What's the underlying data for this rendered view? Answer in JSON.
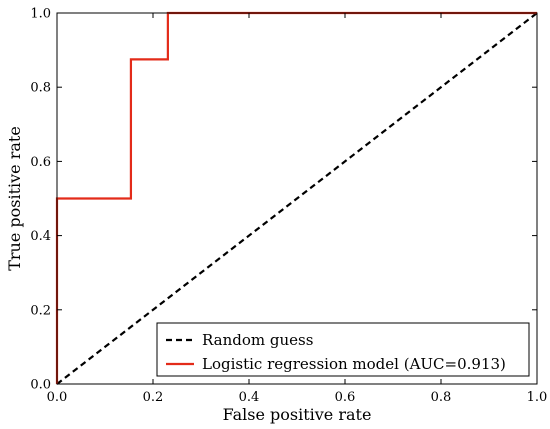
{
  "chart_data": {
    "type": "line",
    "title": "",
    "xlabel": "False positive rate",
    "ylabel": "True positive rate",
    "xlim": [
      0.0,
      1.0
    ],
    "ylim": [
      0.0,
      1.0
    ],
    "xticks": [
      "0.0",
      "0.2",
      "0.4",
      "0.6",
      "0.8",
      "1.0"
    ],
    "yticks": [
      "0.0",
      "0.2",
      "0.4",
      "0.6",
      "0.8",
      "1.0"
    ],
    "grid": false,
    "legend_position": "lower-right",
    "series": [
      {
        "name": "Random guess",
        "color": "#000000",
        "style": "dashed",
        "x": [
          0.0,
          1.0
        ],
        "y": [
          0.0,
          1.0
        ]
      },
      {
        "name": "Logistic regression model (AUC=0.913)",
        "color": "#e32b19",
        "style": "solid",
        "x": [
          0.0,
          0.0,
          0.0,
          0.154,
          0.154,
          0.231,
          0.231,
          1.0
        ],
        "y": [
          0.0,
          0.125,
          0.5,
          0.5,
          0.875,
          0.875,
          1.0,
          1.0
        ]
      }
    ]
  }
}
